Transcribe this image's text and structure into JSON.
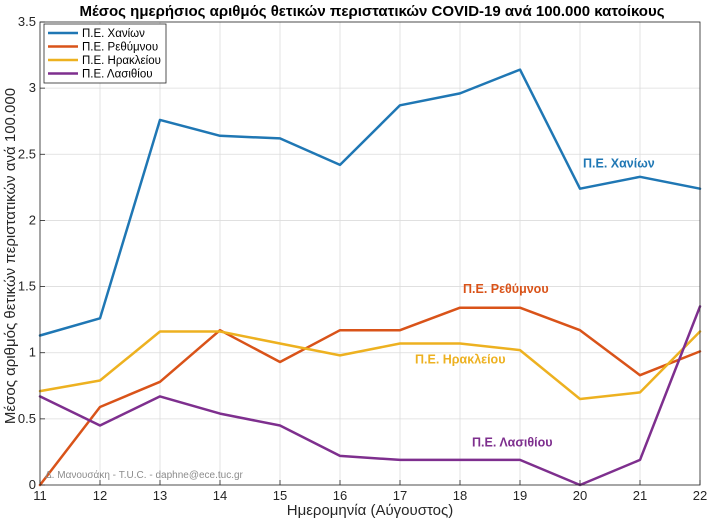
{
  "chart_data": {
    "type": "line",
    "title": "Μέσος ημερήσιος αριθμός θετικών περιστατικών COVID-19 ανά 100.000 κατοίκους",
    "xlabel": "Ημερομηνία (Αύγουστος)",
    "ylabel": "Μέσος αριθμός θετικών περιστατικών ανά 100.000",
    "x": [
      11,
      12,
      13,
      14,
      15,
      16,
      17,
      18,
      19,
      20,
      21,
      22
    ],
    "xlim": [
      11,
      22
    ],
    "ylim": [
      0,
      3.5
    ],
    "yticks": [
      0,
      0.5,
      1,
      1.5,
      2,
      2.5,
      3,
      3.5
    ],
    "yticklabels": [
      "0",
      "0.5",
      "1",
      "1.5",
      "2",
      "2.5",
      "3",
      "3.5"
    ],
    "grid": true,
    "legend_position": "top-left",
    "series": [
      {
        "name": "Π.Ε. Χανίων",
        "color": "#1f77b4",
        "values": [
          1.13,
          1.26,
          2.76,
          2.64,
          2.62,
          2.42,
          2.87,
          2.96,
          3.14,
          2.24,
          2.33,
          2.24
        ]
      },
      {
        "name": "Π.Ε. Ρεθύμνου",
        "color": "#d95319",
        "values": [
          0.0,
          0.59,
          0.78,
          1.17,
          0.93,
          1.17,
          1.17,
          1.34,
          1.34,
          1.17,
          0.83,
          1.01
        ]
      },
      {
        "name": "Π.Ε. Ηρακλείου",
        "color": "#edb120",
        "values": [
          0.71,
          0.79,
          1.16,
          1.16,
          1.07,
          0.98,
          1.07,
          1.07,
          1.02,
          0.65,
          0.7,
          1.16
        ]
      },
      {
        "name": "Π.Ε. Λασιθίου",
        "color": "#7e2f8e",
        "values": [
          0.67,
          0.45,
          0.67,
          0.54,
          0.45,
          0.22,
          0.19,
          0.19,
          0.19,
          0.0,
          0.19,
          1.35
        ]
      }
    ],
    "annotations": [
      {
        "text": "Π.Ε. Χανίων",
        "color": "#1f77b4",
        "x": 20.05,
        "y": 2.4
      },
      {
        "text": "Π.Ε. Ρεθύμνου",
        "color": "#d95319",
        "x": 18.05,
        "y": 1.45
      },
      {
        "text": "Π.Ε. Ηρακλείου",
        "color": "#edb120",
        "x": 17.25,
        "y": 0.92
      },
      {
        "text": "Π.Ε. Λασιθίου",
        "color": "#7e2f8e",
        "x": 18.2,
        "y": 0.29
      }
    ],
    "credit": "Δ. Μανουσάκη - T.U.C. - daphne@ece.tuc.gr"
  }
}
